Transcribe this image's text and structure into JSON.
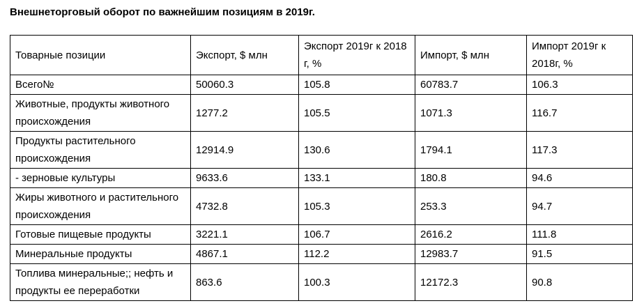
{
  "title": "Внешнеторговый оборот по важнейшим позициям в 2019г.",
  "colors": {
    "text": "#000000",
    "border": "#000000",
    "background": "#ffffff"
  },
  "table": {
    "columns": [
      {
        "label": "Товарные позиции"
      },
      {
        "label": "Экспорт, $ млн"
      },
      {
        "label": "Экспорт 2019г к 2018 г, %"
      },
      {
        "label": "Импорт, $ млн"
      },
      {
        "label": "Импорт 2019г к 2018г, %"
      }
    ],
    "rows": [
      {
        "position": "Всего№",
        "export": "50060.3",
        "export_change": "105.8",
        "import": "60783.7",
        "import_change": "106.3"
      },
      {
        "position": "Животные, продукты животного происхождения",
        "export": "1277.2",
        "export_change": "105.5",
        "import": "1071.3",
        "import_change": "116.7"
      },
      {
        "position": "Продукты растительного происхождения",
        "export": "12914.9",
        "export_change": "130.6",
        "import": "1794.1",
        "import_change": "117.3"
      },
      {
        "position": "- зерновые культуры",
        "export": "9633.6",
        "export_change": "133.1",
        "import": "180.8",
        "import_change": "94.6"
      },
      {
        "position": "Жиры животного и растительного происхождения",
        "export": "4732.8",
        "export_change": "105.3",
        "import": "253.3",
        "import_change": "94.7"
      },
      {
        "position": "Готовые пищевые продукты",
        "export": "3221.1",
        "export_change": "106.7",
        "import": "2616.2",
        "import_change": "111.8"
      },
      {
        "position": "Минеральные продукты",
        "export": "4867.1",
        "export_change": "112.2",
        "import": "12983.7",
        "import_change": "91.5"
      },
      {
        "position": "Топлива минеральные;; нефть и продукты ее переработки",
        "export": "863.6",
        "export_change": "100.3",
        "import": "12172.3",
        "import_change": "90.8"
      }
    ]
  }
}
